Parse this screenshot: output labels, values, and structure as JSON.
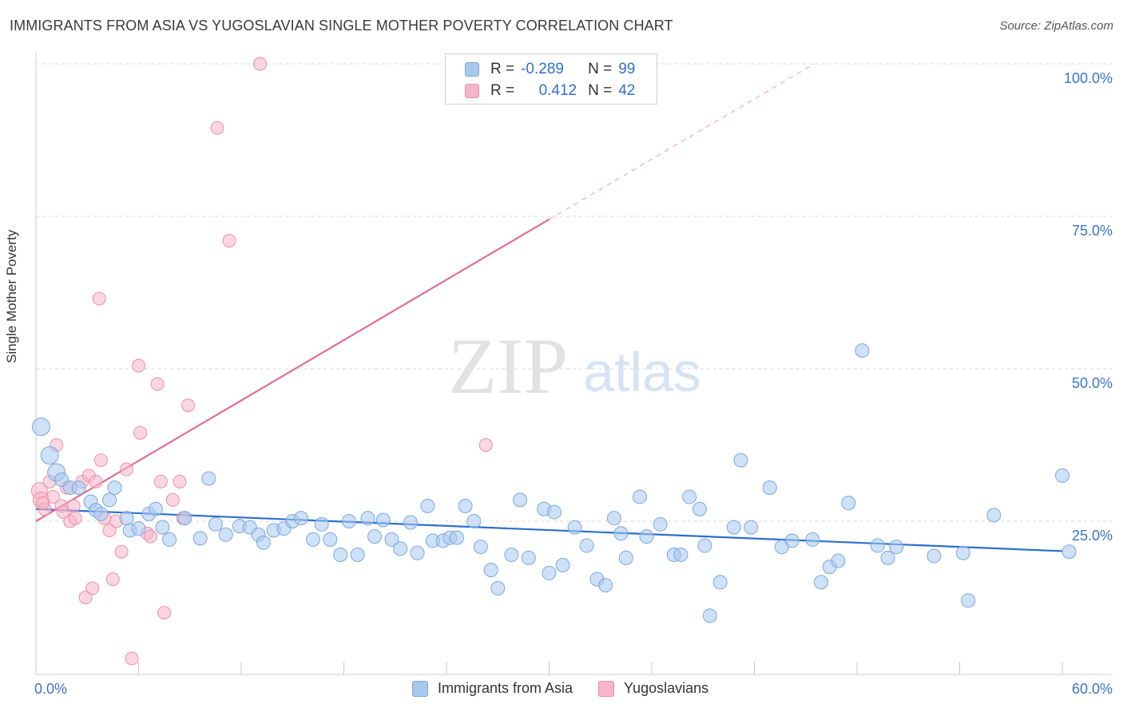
{
  "header": {
    "title": "IMMIGRANTS FROM ASIA VS YUGOSLAVIAN SINGLE MOTHER POVERTY CORRELATION CHART",
    "source": "Source: ZipAtlas.com"
  },
  "watermark": {
    "zip": "ZIP",
    "atlas": "atlas"
  },
  "stats_legend": {
    "rows": [
      {
        "r_label": "R =",
        "r_value": "-0.289",
        "n_label": "N =",
        "n_value": "99",
        "color": "#a8c8f0"
      },
      {
        "r_label": "R =",
        "r_value": "0.412",
        "n_label": "N =",
        "n_value": "42",
        "color": "#f6b5c8"
      }
    ]
  },
  "colors": {
    "blue_fill": "#a8c8f0",
    "blue_stroke": "#7aa8de",
    "blue_line": "#2a6fcf",
    "pink_fill": "#f6b5c8",
    "pink_stroke": "#ec8fab",
    "pink_line": "#e56b93",
    "tick_label": "#3b74c9",
    "grid": "#d9d9d9"
  },
  "chart_data": {
    "type": "scatter",
    "title": "IMMIGRANTS FROM ASIA VS YUGOSLAVIAN SINGLE MOTHER POVERTY CORRELATION CHART",
    "xlabel": "",
    "ylabel": "Single Mother Poverty",
    "xlim": [
      0,
      60
    ],
    "ylim": [
      0,
      105
    ],
    "x_tick_labels": [
      "0.0%",
      "60.0%"
    ],
    "y_ticks": [
      25,
      50,
      75,
      100
    ],
    "y_tick_labels": [
      "25.0%",
      "50.0%",
      "75.0%",
      "100.0%"
    ],
    "grid": "horizontal dashed",
    "legend_position": "bottom-center",
    "series": [
      {
        "name": "Immigrants from Asia",
        "color": "#a8c8f0",
        "points": [
          [
            0.3,
            40.5
          ],
          [
            0.8,
            35.8
          ],
          [
            1.2,
            33.0
          ],
          [
            1.5,
            31.8
          ],
          [
            2.0,
            30.5
          ],
          [
            2.5,
            30.5
          ],
          [
            3.2,
            28.2
          ],
          [
            3.5,
            26.8
          ],
          [
            3.8,
            26.2
          ],
          [
            4.3,
            28.5
          ],
          [
            4.6,
            30.5
          ],
          [
            5.3,
            25.5
          ],
          [
            5.5,
            23.5
          ],
          [
            6.0,
            23.8
          ],
          [
            6.6,
            26.2
          ],
          [
            7.0,
            27.0
          ],
          [
            7.4,
            24.0
          ],
          [
            7.8,
            22.0
          ],
          [
            8.7,
            25.5
          ],
          [
            9.6,
            22.2
          ],
          [
            10.1,
            32.0
          ],
          [
            10.5,
            24.5
          ],
          [
            11.1,
            22.8
          ],
          [
            11.9,
            24.2
          ],
          [
            12.5,
            24.0
          ],
          [
            13.0,
            22.8
          ],
          [
            13.3,
            21.5
          ],
          [
            13.9,
            23.5
          ],
          [
            14.5,
            23.8
          ],
          [
            15.0,
            25.0
          ],
          [
            15.5,
            25.5
          ],
          [
            16.2,
            22.0
          ],
          [
            16.7,
            24.5
          ],
          [
            17.2,
            22.0
          ],
          [
            17.8,
            19.5
          ],
          [
            18.3,
            25.0
          ],
          [
            18.8,
            19.5
          ],
          [
            19.4,
            25.5
          ],
          [
            19.8,
            22.5
          ],
          [
            20.3,
            25.2
          ],
          [
            20.8,
            22.0
          ],
          [
            21.3,
            20.5
          ],
          [
            21.9,
            24.8
          ],
          [
            22.3,
            19.8
          ],
          [
            22.9,
            27.5
          ],
          [
            23.2,
            21.8
          ],
          [
            23.8,
            21.8
          ],
          [
            24.2,
            22.3
          ],
          [
            24.6,
            22.3
          ],
          [
            25.1,
            27.5
          ],
          [
            25.6,
            25.0
          ],
          [
            26.0,
            20.8
          ],
          [
            26.6,
            17.0
          ],
          [
            27.0,
            14.0
          ],
          [
            27.8,
            19.5
          ],
          [
            28.3,
            28.5
          ],
          [
            28.8,
            19.0
          ],
          [
            29.7,
            27.0
          ],
          [
            30.0,
            16.5
          ],
          [
            30.3,
            26.5
          ],
          [
            30.8,
            17.8
          ],
          [
            31.5,
            24.0
          ],
          [
            32.2,
            21.0
          ],
          [
            32.8,
            15.5
          ],
          [
            33.3,
            14.5
          ],
          [
            33.8,
            25.5
          ],
          [
            34.2,
            23.0
          ],
          [
            34.5,
            19.0
          ],
          [
            35.3,
            29.0
          ],
          [
            35.7,
            22.5
          ],
          [
            36.5,
            24.5
          ],
          [
            37.3,
            19.5
          ],
          [
            37.7,
            19.5
          ],
          [
            38.2,
            29.0
          ],
          [
            38.8,
            27.0
          ],
          [
            39.1,
            21.0
          ],
          [
            39.4,
            9.5
          ],
          [
            40.0,
            15.0
          ],
          [
            40.8,
            24.0
          ],
          [
            41.2,
            35.0
          ],
          [
            41.8,
            24.0
          ],
          [
            42.9,
            30.5
          ],
          [
            43.6,
            20.8
          ],
          [
            44.2,
            21.8
          ],
          [
            45.4,
            22.0
          ],
          [
            45.9,
            15.0
          ],
          [
            46.4,
            17.5
          ],
          [
            46.9,
            18.5
          ],
          [
            47.5,
            28.0
          ],
          [
            48.3,
            53.0
          ],
          [
            49.2,
            21.0
          ],
          [
            49.8,
            19.0
          ],
          [
            50.3,
            20.8
          ],
          [
            52.5,
            19.3
          ],
          [
            54.2,
            19.8
          ],
          [
            54.5,
            12.0
          ],
          [
            56.0,
            26.0
          ],
          [
            60.0,
            32.5
          ],
          [
            60.4,
            20.0
          ]
        ]
      },
      {
        "name": "Yugoslavians",
        "color": "#f6b5c8",
        "points": [
          [
            0.2,
            30.0
          ],
          [
            0.3,
            28.5
          ],
          [
            0.5,
            27.0
          ],
          [
            0.8,
            31.5
          ],
          [
            1.0,
            29.0
          ],
          [
            1.2,
            37.5
          ],
          [
            1.5,
            27.5
          ],
          [
            1.8,
            30.5
          ],
          [
            2.0,
            25.0
          ],
          [
            2.2,
            27.5
          ],
          [
            2.3,
            25.5
          ],
          [
            2.7,
            31.5
          ],
          [
            2.9,
            12.5
          ],
          [
            3.1,
            32.5
          ],
          [
            3.3,
            14.0
          ],
          [
            3.5,
            31.5
          ],
          [
            3.7,
            61.5
          ],
          [
            3.8,
            35.0
          ],
          [
            4.0,
            25.5
          ],
          [
            4.3,
            23.5
          ],
          [
            4.5,
            15.5
          ],
          [
            4.7,
            25.0
          ],
          [
            5.0,
            20.0
          ],
          [
            5.3,
            33.5
          ],
          [
            5.6,
            2.5
          ],
          [
            6.0,
            50.5
          ],
          [
            6.1,
            39.5
          ],
          [
            6.5,
            23.0
          ],
          [
            6.7,
            22.5
          ],
          [
            7.1,
            47.5
          ],
          [
            7.3,
            31.5
          ],
          [
            7.5,
            10.0
          ],
          [
            8.0,
            28.5
          ],
          [
            8.4,
            31.5
          ],
          [
            8.6,
            25.5
          ],
          [
            8.9,
            44.0
          ],
          [
            10.6,
            89.5
          ],
          [
            11.3,
            71.0
          ],
          [
            13.1,
            100.0
          ],
          [
            26.3,
            37.5
          ],
          [
            0.4,
            28.0
          ],
          [
            1.6,
            26.5
          ]
        ]
      }
    ],
    "trend_lines": [
      {
        "series": "Immigrants from Asia",
        "x": [
          0,
          60
        ],
        "y": [
          27.0,
          20.1
        ],
        "style": "solid"
      },
      {
        "series": "Yugoslavians",
        "x": [
          0,
          30
        ],
        "y": [
          25.0,
          74.5
        ],
        "style": "solid"
      },
      {
        "series": "Yugoslavians",
        "x": [
          30,
          45.5
        ],
        "y": [
          74.5,
          100.0
        ],
        "style": "dashed"
      }
    ]
  },
  "bottom_legend": {
    "items": [
      {
        "label": "Immigrants from Asia",
        "color": "#a8c8f0"
      },
      {
        "label": "Yugoslavians",
        "color": "#f6b5c8"
      }
    ]
  }
}
